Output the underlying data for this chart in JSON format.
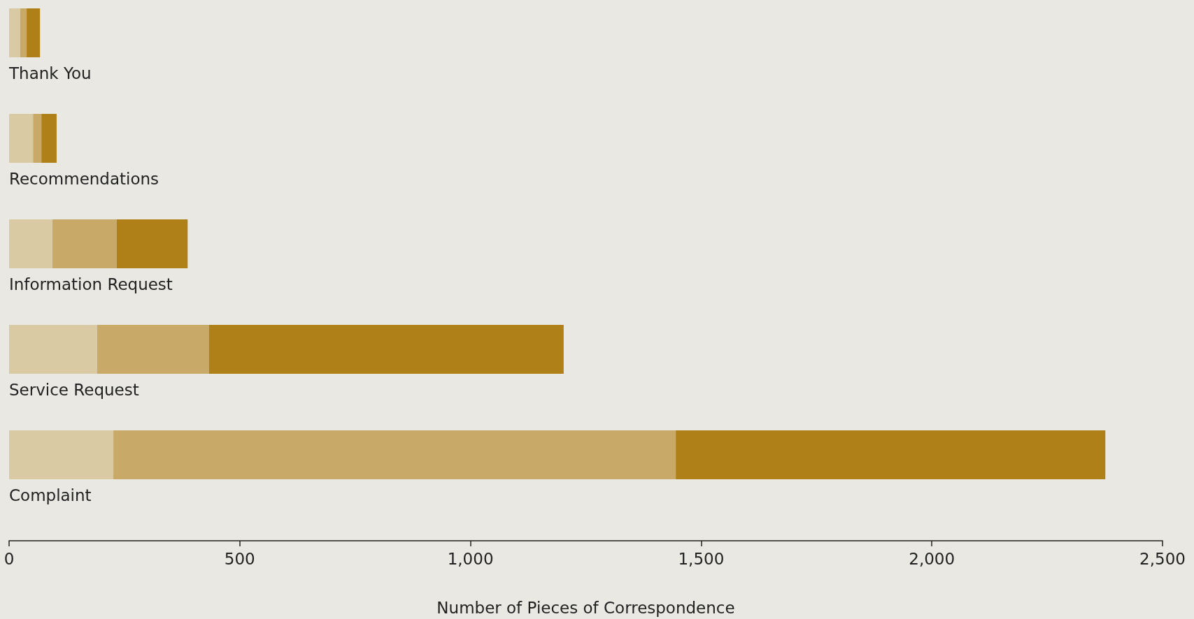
{
  "chart_data": {
    "type": "bar",
    "orientation": "horizontal",
    "stacked": true,
    "categories": [
      "Thank You",
      "Recommendations",
      "Information Request",
      "Service Request",
      "Complaint"
    ],
    "series": [
      {
        "color": "#d9caa3",
        "values": [
          24,
          52,
          94,
          191,
          226
        ]
      },
      {
        "color": "#c8a968",
        "values": [
          14,
          18,
          139,
          242,
          1219
        ]
      },
      {
        "color": "#b08018",
        "values": [
          29,
          33,
          154,
          769,
          931
        ]
      }
    ],
    "xlabel": "Number of Pieces of Correspondence",
    "xlim": [
      0,
      2500
    ],
    "xticks": [
      0,
      500,
      {
        "value": 1000,
        "label": "1,000"
      },
      {
        "value": 1500,
        "label": "1,500"
      },
      {
        "value": 2000,
        "label": "2,000"
      },
      {
        "value": 2500,
        "label": "2,500"
      }
    ],
    "grid": false
  }
}
